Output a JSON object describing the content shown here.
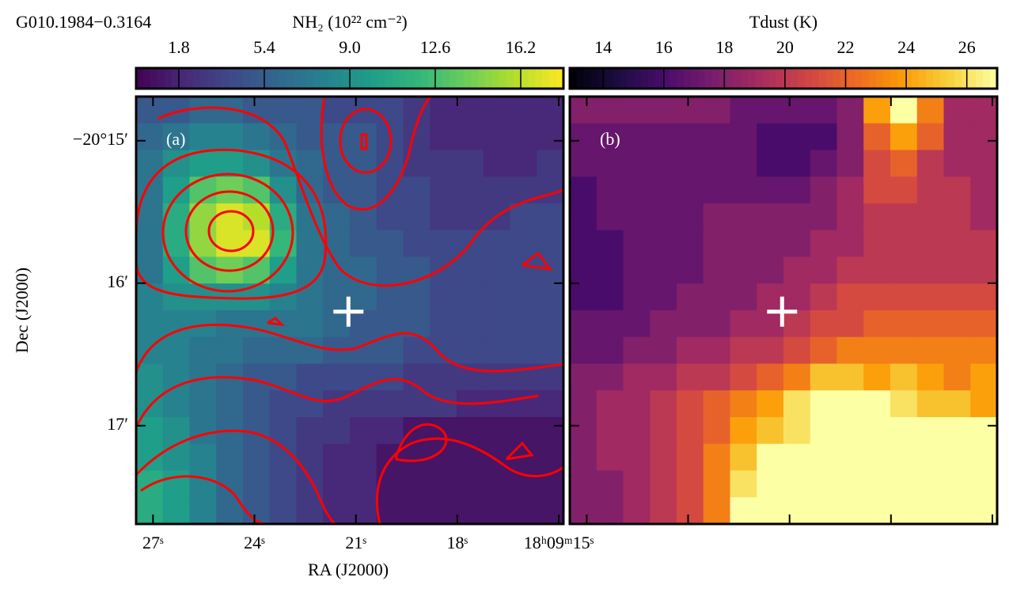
{
  "chart_data": [
    {
      "type": "heatmap",
      "title": "G010.1984−0.3164",
      "colorbar_label": "NH₂ (10²² cm⁻²)",
      "colormap": "viridis",
      "clim": [
        0,
        18
      ],
      "cticks": [
        1.8,
        5.4,
        {
          "value": 9,
          "label": "9.0"
        },
        12.6,
        16.2
      ],
      "panel_label": "(a)",
      "x_label": "RA (J2000)",
      "y_label": "Dec (J2000)",
      "xlim": [
        27.5,
        14.86
      ],
      "xticks": [
        {
          "value": 27,
          "label": "27ˢ"
        },
        {
          "value": 24,
          "label": "24ˢ"
        },
        {
          "value": 21,
          "label": "21ˢ"
        },
        {
          "value": 18,
          "label": "18ˢ"
        },
        {
          "value": 15,
          "label": "18ʰ09ᵐ15ˢ"
        }
      ],
      "ylim": [
        17.69,
        14.69
      ],
      "yticks": [
        {
          "value": 15,
          "label": "−20°15′"
        },
        {
          "value": 16,
          "label": "16′"
        },
        {
          "value": 17,
          "label": "17′"
        }
      ],
      "marker": {
        "x": 21.22,
        "y": 16.2
      },
      "values": [
        [
          5,
          5,
          6,
          6,
          5,
          5,
          5,
          4,
          4,
          4,
          3,
          2,
          2,
          2,
          2,
          2
        ],
        [
          6,
          7,
          8,
          8,
          7,
          6,
          5,
          5,
          5,
          4,
          3,
          2,
          2,
          2,
          2,
          2
        ],
        [
          7,
          9,
          10,
          10,
          9,
          7,
          6,
          5,
          5,
          4,
          3,
          3,
          3,
          2,
          2,
          3
        ],
        [
          7,
          10,
          13,
          14,
          13,
          9,
          6,
          5,
          5,
          4,
          4,
          3,
          3,
          3,
          3,
          3
        ],
        [
          7,
          11,
          15,
          17,
          16,
          11,
          7,
          6,
          5,
          4,
          4,
          3,
          3,
          3,
          4,
          4
        ],
        [
          7,
          11,
          15,
          17,
          17,
          12,
          7,
          6,
          5,
          5,
          4,
          4,
          4,
          4,
          4,
          4
        ],
        [
          7,
          10,
          13,
          14,
          13,
          10,
          7,
          6,
          6,
          5,
          5,
          4,
          4,
          4,
          4,
          4
        ],
        [
          8,
          9,
          9,
          9,
          9,
          8,
          7,
          6,
          6,
          5,
          5,
          4,
          4,
          4,
          4,
          4
        ],
        [
          8,
          8,
          8,
          7,
          7,
          7,
          7,
          6,
          5,
          5,
          5,
          4,
          4,
          4,
          4,
          4
        ],
        [
          8,
          8,
          7,
          7,
          6,
          6,
          6,
          5,
          5,
          5,
          4,
          4,
          4,
          4,
          4,
          4
        ],
        [
          9,
          8,
          7,
          6,
          5,
          5,
          4,
          4,
          4,
          4,
          3,
          3,
          3,
          3,
          3,
          3
        ],
        [
          9,
          8,
          7,
          6,
          5,
          4,
          4,
          3,
          3,
          3,
          3,
          3,
          2,
          2,
          2,
          2
        ],
        [
          10,
          9,
          7,
          6,
          5,
          4,
          3,
          3,
          2,
          2,
          1,
          1,
          1,
          1,
          1,
          1
        ],
        [
          10,
          9,
          8,
          6,
          5,
          4,
          3,
          2,
          2,
          1,
          1,
          1,
          1,
          1,
          1,
          1
        ],
        [
          11,
          10,
          8,
          6,
          5,
          4,
          3,
          2,
          2,
          1,
          1,
          1,
          1,
          1,
          1,
          1
        ],
        [
          11,
          10,
          8,
          6,
          5,
          4,
          3,
          2,
          2,
          1,
          1,
          1,
          1,
          1,
          1,
          1
        ]
      ]
    },
    {
      "type": "heatmap",
      "colorbar_label": "Tdust (K)",
      "colormap": "inferno",
      "clim": [
        12.9,
        27
      ],
      "cticks": [
        14,
        16,
        18,
        20,
        22,
        24,
        26
      ],
      "panel_label": "(b)",
      "xlim": [
        27.5,
        14.86
      ],
      "ylim": [
        17.69,
        14.69
      ],
      "marker": {
        "x": 21.22,
        "y": 16.2
      },
      "values": [
        [
          18,
          18,
          18,
          18,
          18,
          18,
          17,
          17,
          17,
          17,
          18,
          24,
          27,
          23,
          19,
          19
        ],
        [
          17,
          17,
          17,
          17,
          17,
          17,
          17,
          16,
          16,
          16,
          18,
          22,
          24,
          22,
          19,
          19
        ],
        [
          17,
          17,
          17,
          17,
          17,
          17,
          17,
          16,
          16,
          17,
          18,
          21,
          22,
          20,
          19,
          19
        ],
        [
          16,
          17,
          17,
          17,
          17,
          17,
          17,
          17,
          17,
          18,
          19,
          21,
          21,
          20,
          20,
          19
        ],
        [
          16,
          17,
          17,
          17,
          17,
          18,
          18,
          18,
          18,
          18,
          19,
          20,
          20,
          20,
          20,
          19
        ],
        [
          16,
          16,
          17,
          17,
          17,
          18,
          18,
          18,
          18,
          19,
          19,
          20,
          20,
          20,
          20,
          20
        ],
        [
          16,
          16,
          17,
          17,
          17,
          18,
          18,
          18,
          19,
          19,
          20,
          20,
          20,
          20,
          20,
          20
        ],
        [
          16,
          16,
          17,
          17,
          18,
          18,
          18,
          19,
          19,
          20,
          21,
          21,
          21,
          21,
          21,
          21
        ],
        [
          17,
          17,
          17,
          18,
          18,
          18,
          19,
          19,
          20,
          21,
          21,
          22,
          22,
          22,
          22,
          22
        ],
        [
          17,
          17,
          18,
          18,
          19,
          19,
          20,
          20,
          21,
          22,
          23,
          23,
          23,
          23,
          23,
          23
        ],
        [
          18,
          18,
          19,
          19,
          20,
          20,
          21,
          22,
          23,
          25,
          25,
          24,
          25,
          24,
          23,
          24
        ],
        [
          18,
          19,
          19,
          20,
          21,
          22,
          23,
          24,
          26,
          27,
          27,
          27,
          26,
          25,
          25,
          24
        ],
        [
          18,
          19,
          19,
          20,
          21,
          22,
          24,
          25,
          26,
          27,
          27,
          27,
          27,
          27,
          27,
          27
        ],
        [
          18,
          19,
          19,
          20,
          21,
          23,
          25,
          27,
          27,
          27,
          27,
          27,
          27,
          27,
          27,
          27
        ],
        [
          18,
          18,
          19,
          20,
          21,
          23,
          26,
          27,
          27,
          27,
          27,
          27,
          27,
          27,
          27,
          27
        ],
        [
          18,
          18,
          19,
          20,
          21,
          23,
          27,
          27,
          27,
          27,
          27,
          27,
          27,
          27,
          27,
          27
        ]
      ]
    }
  ]
}
